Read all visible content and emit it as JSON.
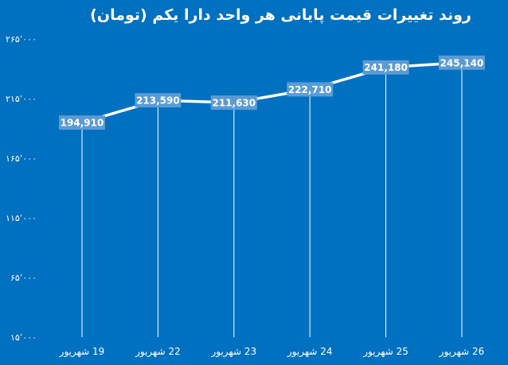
{
  "chart_data": {
    "type": "line",
    "title": "روند تغییرات قیمت پایانی هر واحد دارا یکم (تومان)",
    "categories": [
      "19 شهریور",
      "22 شهریور",
      "23 شهریور",
      "24 شهریور",
      "25 شهریور",
      "26 شهریور"
    ],
    "series": [
      {
        "values": [
          194910,
          213590,
          211630,
          222710,
          241180,
          245140
        ],
        "data_labels": [
          "194,910",
          "213,590",
          "211,630",
          "222,710",
          "241,180",
          "245,140"
        ]
      }
    ],
    "yticks": [
      15000,
      65000,
      115000,
      165000,
      215000,
      265000
    ],
    "ytick_labels": [
      "۱۵٬۰۰۰",
      "۶۵٬۰۰۰",
      "۱۱۵٬۰۰۰",
      "۱۶۵٬۰۰۰",
      "۲۱۵٬۰۰۰",
      "۲۶۵٬۰۰۰"
    ],
    "ylim": [
      15000,
      265000
    ],
    "xlabel": "",
    "ylabel": "",
    "grid": false,
    "colors": {
      "background": "#0070C0",
      "line": "#ffffff",
      "label_box": "#5B9BD5",
      "drop_lines": "#ffffff"
    }
  }
}
